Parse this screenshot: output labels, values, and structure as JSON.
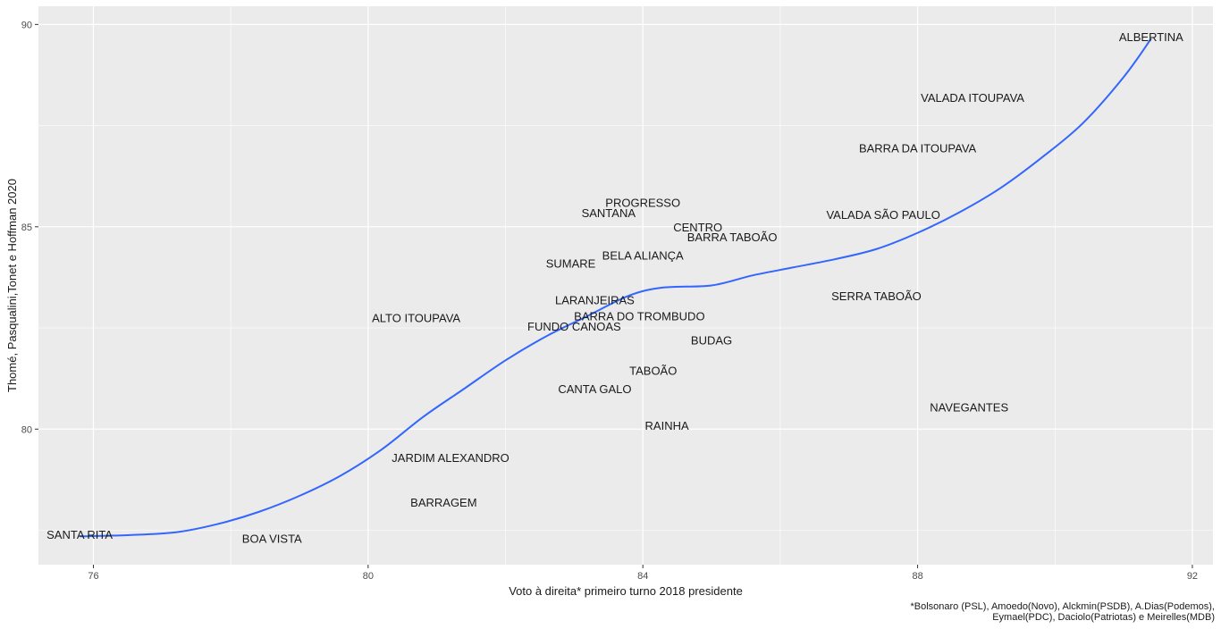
{
  "chart_data": {
    "type": "scatter",
    "xlabel": "Voto à direita* primeiro turno 2018 presidente",
    "ylabel": "Thomé, Pasqualini,Tonet e Hoffman 2020",
    "xlim": [
      75.2,
      92.3
    ],
    "ylim": [
      76.65,
      90.45
    ],
    "x_ticks": [
      76,
      80,
      84,
      88,
      92
    ],
    "y_ticks": [
      80,
      85,
      90
    ],
    "grid": true,
    "caption": "*Bolsonaro (PSL), Amoedo(Novo), Alckmin(PSDB), A.Dias(Podemos),\nEymael(PDC), Daciolo(Patriotas) e Meirelles(MDB)",
    "points": [
      {
        "label": "ALBERTINA",
        "x": 91.4,
        "y": 89.7
      },
      {
        "label": "VALADA ITOUPAVA",
        "x": 88.8,
        "y": 88.2
      },
      {
        "label": "BARRA DA ITOUPAVA",
        "x": 88.0,
        "y": 86.95
      },
      {
        "label": "PROGRESSO",
        "x": 84.0,
        "y": 85.6
      },
      {
        "label": "SANTANA",
        "x": 83.5,
        "y": 85.35
      },
      {
        "label": "VALADA SÃO PAULO",
        "x": 87.5,
        "y": 85.3
      },
      {
        "label": "CENTRO",
        "x": 84.8,
        "y": 85.0
      },
      {
        "label": "BARRA TABOÃO",
        "x": 85.3,
        "y": 84.75
      },
      {
        "label": "BELA ALIANÇA",
        "x": 84.0,
        "y": 84.3
      },
      {
        "label": "SUMARE",
        "x": 82.95,
        "y": 84.1
      },
      {
        "label": "SERRA TABOÃO",
        "x": 87.4,
        "y": 83.3
      },
      {
        "label": "LARANJEIRAS",
        "x": 83.3,
        "y": 83.2
      },
      {
        "label": "ALTO ITOUPAVA",
        "x": 80.7,
        "y": 82.75
      },
      {
        "label": "BARRA DO TROMBUDO",
        "x": 83.95,
        "y": 82.8
      },
      {
        "label": "FUNDO CANOAS",
        "x": 83.0,
        "y": 82.55
      },
      {
        "label": "BUDAG",
        "x": 85.0,
        "y": 82.2
      },
      {
        "label": "TABOÃO",
        "x": 84.15,
        "y": 81.45
      },
      {
        "label": "CANTA GALO",
        "x": 83.3,
        "y": 81.0
      },
      {
        "label": "NAVEGANTES",
        "x": 88.75,
        "y": 80.55
      },
      {
        "label": "RAINHA",
        "x": 84.35,
        "y": 80.1
      },
      {
        "label": "JARDIM ALEXANDRO",
        "x": 81.2,
        "y": 79.3
      },
      {
        "label": "BARRAGEM",
        "x": 81.1,
        "y": 78.2
      },
      {
        "label": "SANTA RITA",
        "x": 75.8,
        "y": 77.4
      },
      {
        "label": "BOA VISTA",
        "x": 78.6,
        "y": 77.3
      }
    ],
    "smooth_line": {
      "color": "#3366FF",
      "x": [
        75.8,
        76.5,
        77.2,
        77.8,
        78.4,
        79.0,
        79.6,
        80.2,
        80.8,
        81.4,
        82.0,
        82.6,
        83.2,
        83.8,
        84.3,
        85.0,
        85.6,
        86.2,
        86.8,
        87.4,
        88.0,
        88.6,
        89.2,
        89.8,
        90.4,
        91.0,
        91.4
      ],
      "y": [
        77.35,
        77.38,
        77.45,
        77.65,
        77.95,
        78.35,
        78.85,
        79.5,
        80.3,
        81.0,
        81.7,
        82.3,
        82.8,
        83.3,
        83.5,
        83.55,
        83.8,
        84.0,
        84.2,
        84.45,
        84.85,
        85.35,
        85.95,
        86.7,
        87.55,
        88.7,
        89.65
      ]
    }
  }
}
